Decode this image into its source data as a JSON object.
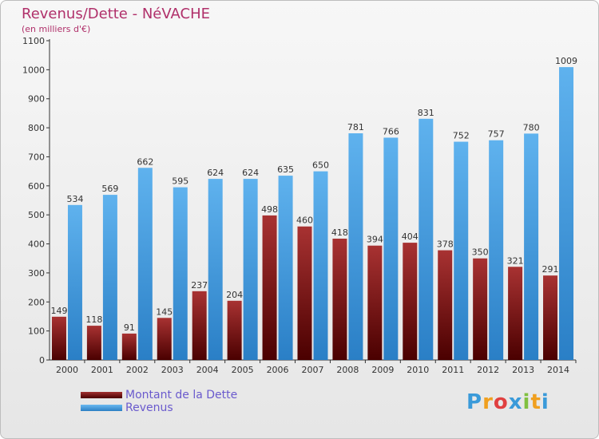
{
  "title": "Revenus/Dette - NéVACHE",
  "subtitle": "(en milliers d'€)",
  "legend": {
    "dette": "Montant de la Dette",
    "revenus": "Revenus"
  },
  "logo_letters": [
    "P",
    "r",
    "o",
    "x",
    "i",
    "t",
    "i"
  ],
  "colors": {
    "title": "#b0306a",
    "dette": "#7a1a1a",
    "revenus": "#4aa3e6",
    "legend_text": "#6a5acd"
  },
  "chart_data": {
    "type": "bar",
    "categories": [
      "2000",
      "2001",
      "2002",
      "2003",
      "2004",
      "2005",
      "2006",
      "2007",
      "2008",
      "2009",
      "2010",
      "2011",
      "2012",
      "2013",
      "2014"
    ],
    "series": [
      {
        "name": "Montant de la Dette",
        "values": [
          149,
          118,
          91,
          145,
          237,
          204,
          498,
          460,
          418,
          394,
          404,
          378,
          350,
          321,
          291
        ]
      },
      {
        "name": "Revenus",
        "values": [
          534,
          569,
          662,
          595,
          624,
          624,
          635,
          650,
          781,
          766,
          831,
          752,
          757,
          780,
          1009
        ]
      }
    ],
    "ylim": [
      0,
      1100
    ],
    "yticks": [
      0,
      100,
      200,
      300,
      400,
      500,
      600,
      700,
      800,
      900,
      1000,
      1100
    ],
    "grid": false,
    "legend_position": "bottom-left"
  }
}
